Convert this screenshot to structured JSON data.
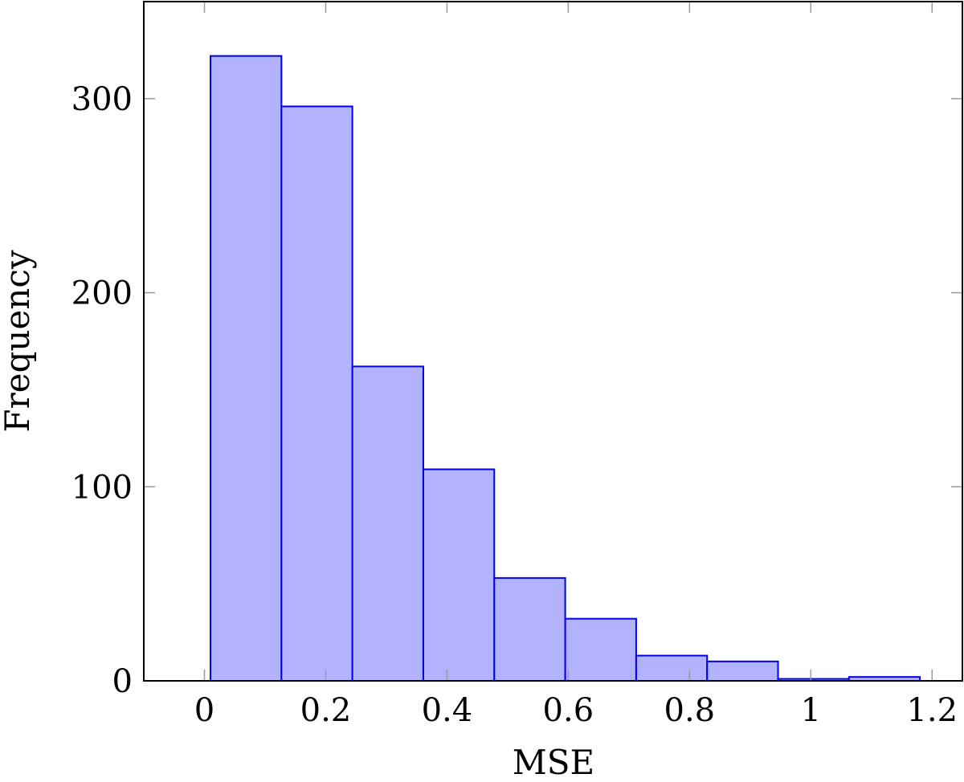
{
  "chart_data": {
    "type": "bar",
    "histogram": true,
    "xlabel": "MSE",
    "ylabel": "Frequency",
    "xlim": [
      -0.1,
      1.25
    ],
    "ylim": [
      0,
      350
    ],
    "x_ticks": [
      0,
      0.2,
      0.4,
      0.6,
      0.8,
      1,
      1.2
    ],
    "x_tick_labels": [
      "0",
      "0.2",
      "0.4",
      "0.6",
      "0.8",
      "1",
      "1.2"
    ],
    "y_ticks": [
      0,
      100,
      200,
      300
    ],
    "y_tick_labels": [
      "0",
      "100",
      "200",
      "300"
    ],
    "bin_edges": [
      0.01,
      0.127,
      0.244,
      0.361,
      0.478,
      0.595,
      0.712,
      0.829,
      0.946,
      1.063,
      1.18
    ],
    "values": [
      322,
      296,
      162,
      109,
      53,
      32,
      13,
      10,
      1,
      2
    ],
    "grid": false,
    "colors": {
      "bar_fill": "#b2b2ff",
      "bar_stroke": "#0000ee"
    }
  }
}
